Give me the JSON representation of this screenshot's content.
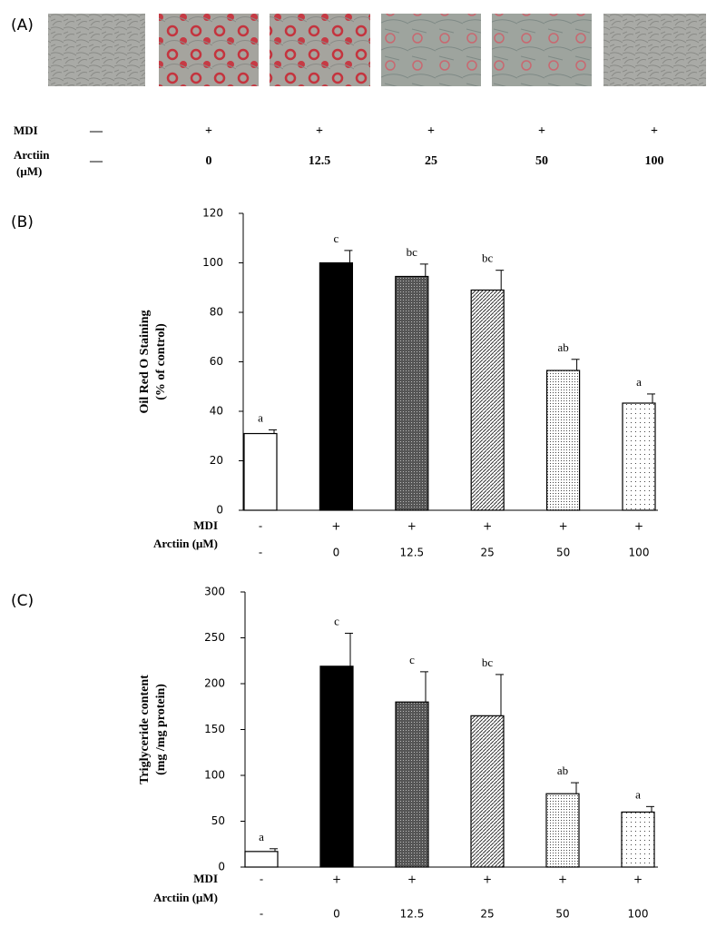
{
  "panel_a": {
    "label": "(A)",
    "rows": [
      {
        "label": "MDI",
        "values": [
          "—",
          "+",
          "+",
          "+",
          "+",
          "+"
        ]
      },
      {
        "label": "Arctiin",
        "unit": "(μM)",
        "values": [
          "—",
          "0",
          "12.5",
          "25",
          "50",
          "100"
        ]
      }
    ]
  },
  "chart_data": [
    {
      "type": "bar",
      "panel_label": "(B)",
      "ylabel": [
        "Oil Red O Staining",
        "(% of control)"
      ],
      "ylim": [
        0,
        120
      ],
      "yticks": [
        0,
        20,
        40,
        60,
        80,
        100,
        120
      ],
      "values": [
        31,
        100,
        94.5,
        89,
        56.5,
        43.3
      ],
      "errors": [
        1.5,
        5,
        5,
        8,
        4.5,
        3.7
      ],
      "annotations": [
        "a",
        "c",
        "bc",
        "bc",
        "ab",
        "a"
      ],
      "rows": [
        {
          "label": "MDI",
          "values": [
            "-",
            "+",
            "+",
            "+",
            "+",
            "+"
          ]
        },
        {
          "label": "Arctiin (μM)",
          "values": [
            "-",
            "0",
            "12.5",
            "25",
            "50",
            "100"
          ]
        }
      ]
    },
    {
      "type": "bar",
      "panel_label": "(C)",
      "ylabel": [
        "Triglyceride content",
        "(mg /mg protein)"
      ],
      "ylim": [
        0,
        300
      ],
      "yticks": [
        0,
        50,
        100,
        150,
        200,
        250,
        300
      ],
      "values": [
        17,
        219,
        180,
        165,
        80,
        60
      ],
      "errors": [
        3,
        36,
        33,
        45,
        12,
        6
      ],
      "annotations": [
        "a",
        "c",
        "c",
        "bc",
        "ab",
        "a"
      ],
      "rows": [
        {
          "label": "MDI",
          "values": [
            "-",
            "+",
            "+",
            "+",
            "+",
            "+"
          ]
        },
        {
          "label": "Arctiin (μM)",
          "values": [
            "-",
            "0",
            "12.5",
            "25",
            "50",
            "100"
          ]
        }
      ]
    }
  ]
}
